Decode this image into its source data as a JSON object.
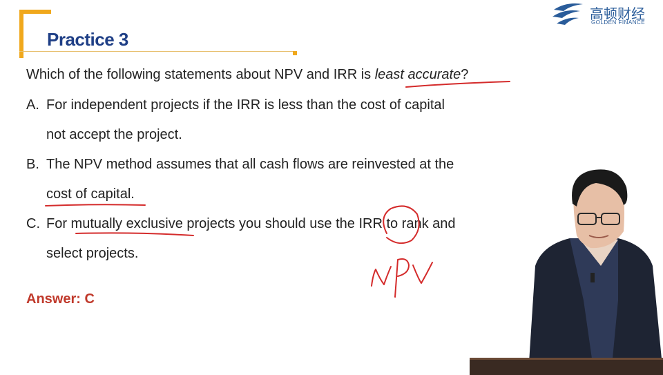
{
  "header": {
    "title": "Practice 3"
  },
  "logo": {
    "name_cn": "高顿财经",
    "name_en": "GOLDEN FINANCE"
  },
  "question": {
    "prefix": "Which of the following statements about NPV and IRR is ",
    "emphasis": "least accurate",
    "suffix": "?"
  },
  "options": [
    {
      "letter": "A.",
      "line1": "For independent projects if the IRR is less than the cost of capital",
      "line2": "not accept the project."
    },
    {
      "letter": "B.",
      "line1": "The NPV method assumes that all cash flows are reinvested at the",
      "line2": "cost of capital."
    },
    {
      "letter": "C.",
      "line1": "For mutually exclusive projects you should use the IRR to rank and",
      "line2": "select projects."
    }
  ],
  "answer": "Answer: C",
  "annotation": {
    "handwritten": "NPV",
    "ink_color": "#d42b2b"
  },
  "colors": {
    "accent": "#f0a81c",
    "title": "#1f3f86",
    "answer": "#c0392b"
  }
}
